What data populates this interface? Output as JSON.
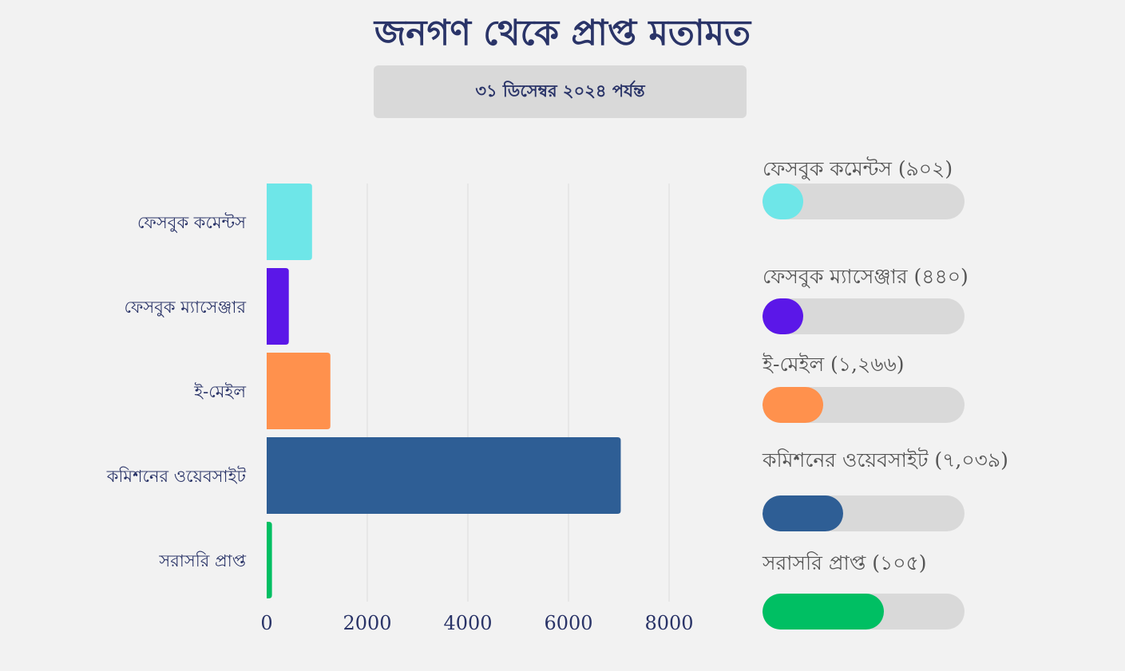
{
  "header": {
    "title": "জনগণ থেকে প্রাপ্ত মতামত",
    "subtitle": "৩১ ডিসেম্বর ২০২৪ পর্যন্ত"
  },
  "chart_data": {
    "type": "bar",
    "orientation": "horizontal",
    "categories": [
      "ফেসবুক কমেন্টস",
      "ফেসবুক ম্যাসেঞ্জার",
      "ই-মেইল",
      "কমিশনের ওয়েবসাইট",
      "সরাসরি প্রাপ্ত"
    ],
    "values": [
      902,
      440,
      1266,
      7039,
      105
    ],
    "colors": [
      "#6ee6e8",
      "#5b17e8",
      "#ff914d",
      "#2e5e95",
      "#00bf63"
    ],
    "xlim": [
      0,
      8000
    ],
    "xticks": [
      0,
      2000,
      4000,
      6000,
      8000
    ],
    "xtick_labels": [
      "0",
      "2000",
      "4000",
      "6000",
      "8000"
    ],
    "grid": true,
    "title": "জনগণ থেকে প্রাপ্ত মতামত"
  },
  "legend": [
    {
      "label": "ফেসবুক কমেন্টস (৯০২)",
      "color": "#6ee6e8",
      "fill": 0.2
    },
    {
      "label": "ফেসবুক ম্যাসেঞ্জার (৪৪০)",
      "color": "#5b17e8",
      "fill": 0.2
    },
    {
      "label": "ই-মেইল (১,২৬৬)",
      "color": "#ff914d",
      "fill": 0.3
    },
    {
      "label": "কমিশনের ওয়েবসাইট (৭,০৩৯)",
      "color": "#2e5e95",
      "fill": 0.4
    },
    {
      "label": "সরাসরি প্রাপ্ত (১০৫)",
      "color": "#00bf63",
      "fill": 0.6
    }
  ]
}
